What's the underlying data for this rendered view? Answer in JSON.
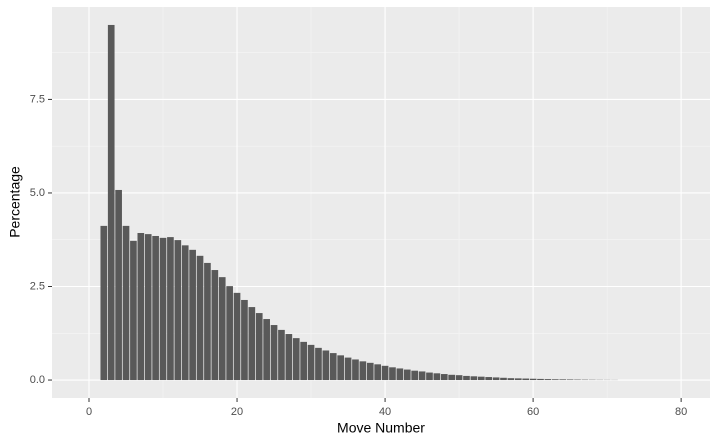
{
  "chart_data": {
    "type": "bar",
    "x_label": "Move Number",
    "y_label": "Percentage",
    "x": [
      2,
      3,
      4,
      5,
      6,
      7,
      8,
      9,
      10,
      11,
      12,
      13,
      14,
      15,
      16,
      17,
      18,
      19,
      20,
      21,
      22,
      23,
      24,
      25,
      26,
      27,
      28,
      29,
      30,
      31,
      32,
      33,
      34,
      35,
      36,
      37,
      38,
      39,
      40,
      41,
      42,
      43,
      44,
      45,
      46,
      47,
      48,
      49,
      50,
      51,
      52,
      53,
      54,
      55,
      56,
      57,
      58,
      59,
      60,
      61,
      62,
      63,
      64,
      65,
      66,
      67,
      68,
      69,
      70,
      71
    ],
    "values": [
      4.12,
      9.49,
      5.08,
      4.12,
      3.72,
      3.93,
      3.9,
      3.85,
      3.8,
      3.82,
      3.74,
      3.6,
      3.48,
      3.32,
      3.13,
      2.94,
      2.75,
      2.51,
      2.33,
      2.14,
      1.95,
      1.79,
      1.63,
      1.47,
      1.34,
      1.23,
      1.12,
      1.02,
      0.94,
      0.86,
      0.79,
      0.72,
      0.66,
      0.6,
      0.55,
      0.5,
      0.46,
      0.42,
      0.38,
      0.34,
      0.31,
      0.28,
      0.25,
      0.23,
      0.2,
      0.18,
      0.16,
      0.14,
      0.13,
      0.11,
      0.1,
      0.09,
      0.08,
      0.07,
      0.06,
      0.05,
      0.045,
      0.04,
      0.035,
      0.03,
      0.025,
      0.02,
      0.018,
      0.015,
      0.012,
      0.01,
      0.008,
      0.006,
      0.005,
      0.004
    ],
    "bar_width": 0.9,
    "color": "#595959",
    "xlim": [
      -5,
      83.9
    ],
    "ylim": [
      -0.48,
      9.97
    ],
    "xticks": [
      0,
      20,
      40,
      60,
      80
    ],
    "yticks": [
      {
        "value": 0,
        "label": "0.0"
      },
      {
        "value": 2.5,
        "label": "2.5"
      },
      {
        "value": 5,
        "label": "5.0"
      },
      {
        "value": 7.5,
        "label": "7.5"
      }
    ],
    "x_minor_ticks": [
      10,
      30,
      50,
      70
    ],
    "y_minor_ticks": [
      1.25,
      3.75,
      6.25,
      8.75
    ],
    "grid": true
  }
}
